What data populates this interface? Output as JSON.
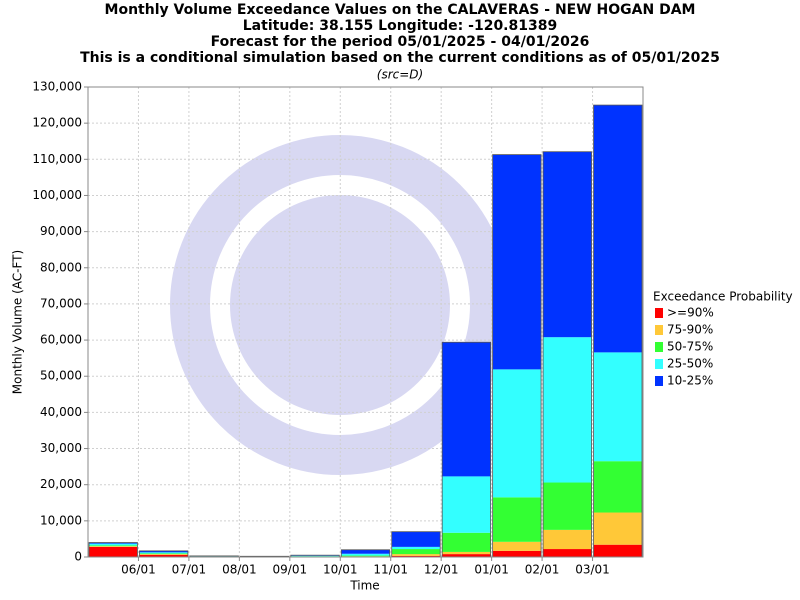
{
  "chart_data": {
    "type": "stacked_bar",
    "title": [
      "Monthly Volume Exceedance Values on the CALAVERAS - NEW HOGAN DAM",
      "Latitude: 38.155 Longitude: -120.81389",
      "Forecast for the period 05/01/2025 - 04/01/2026",
      "This is a conditional simulation based on the current conditions as of 05/01/2025"
    ],
    "subtitle": "(src=D)",
    "x_label": "Time",
    "y_label": "Monthly Volume (AC-FT)",
    "legend_title": "Exceedance Probability",
    "categories": [
      null,
      null,
      null,
      null,
      null,
      null,
      null,
      null,
      null,
      null,
      null
    ],
    "xticks": [
      "06/01",
      "07/01",
      "08/01",
      "09/01",
      "10/01",
      "11/01",
      "12/01",
      "01/01",
      "02/01",
      "03/01"
    ],
    "series": [
      {
        "name": ">=90%",
        "color": "#ff0000",
        "values": [
          2800,
          600,
          100,
          50,
          50,
          100,
          300,
          800,
          1700,
          2200,
          3400
        ]
      },
      {
        "name": "75-90%",
        "color": "#ffc838",
        "values": [
          200,
          200,
          50,
          30,
          50,
          100,
          500,
          600,
          2500,
          5300,
          8900
        ]
      },
      {
        "name": "50-75%",
        "color": "#33ff33",
        "values": [
          200,
          200,
          50,
          30,
          100,
          200,
          1400,
          5300,
          12300,
          13100,
          14200
        ]
      },
      {
        "name": "25-50%",
        "color": "#33ffff",
        "values": [
          500,
          300,
          50,
          40,
          150,
          500,
          600,
          15600,
          35400,
          40200,
          30100
        ]
      },
      {
        "name": "10-25%",
        "color": "#0033ff",
        "values": [
          300,
          400,
          50,
          50,
          150,
          1100,
          4200,
          37100,
          59400,
          51300,
          68400
        ]
      }
    ],
    "ylim": [
      0,
      130000
    ],
    "yticks": [
      0,
      {
        "value": 10000,
        "label": "10,000"
      },
      {
        "value": 20000,
        "label": "20,000"
      },
      {
        "value": 30000,
        "label": "30,000"
      },
      {
        "value": 40000,
        "label": "40,000"
      },
      {
        "value": 50000,
        "label": "50,000"
      },
      {
        "value": 60000,
        "label": "60,000"
      },
      {
        "value": 70000,
        "label": "70,000"
      },
      {
        "value": 80000,
        "label": "80,000"
      },
      {
        "value": 90000,
        "label": "90,000"
      },
      {
        "value": 100000,
        "label": "100,000"
      },
      {
        "value": 110000,
        "label": "110,000"
      },
      {
        "value": 120000,
        "label": "120,000"
      },
      {
        "value": 130000,
        "label": "130,000"
      }
    ],
    "grid": true
  }
}
